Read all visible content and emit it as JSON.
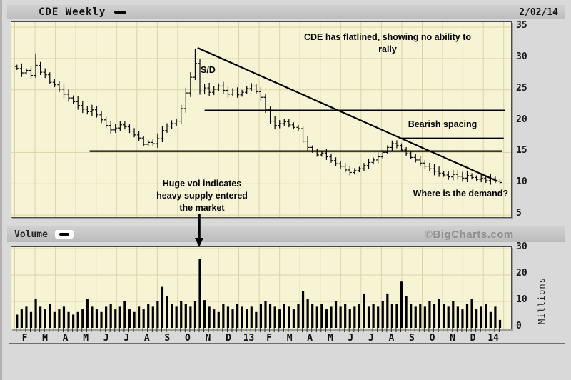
{
  "titlebar": {
    "title": "CDE Weekly",
    "collapse_label": "",
    "date": "2/02/14"
  },
  "volume_header": {
    "label": "Volume",
    "collapse_label": "",
    "copyright": "©BigCharts.com"
  },
  "annotations": {
    "flatline": "CDE has flatlined, showing no ability to rally",
    "sd": "S/D",
    "bearish": "Bearish spacing",
    "huge_vol_line1": "Huge vol indicates",
    "huge_vol_line2": "heavy supply entered",
    "huge_vol_line3": "the market",
    "demand": "Where is the demand?"
  },
  "axes": {
    "volume_unit": "Millions"
  },
  "chart_data": {
    "type": "bar",
    "subtype": "weekly-ohlc-with-volume",
    "symbol": "CDE",
    "interval": "Weekly",
    "as_of_date": "2/02/14",
    "x_labels": [
      "F",
      "M",
      "A",
      "M",
      "J",
      "J",
      "A",
      "S",
      "O",
      "N",
      "D",
      "13",
      "F",
      "M",
      "A",
      "M",
      "J",
      "J",
      "A",
      "S",
      "O",
      "N",
      "D",
      "14"
    ],
    "price_axis": {
      "ticks": [
        35,
        30,
        25,
        20,
        15,
        10,
        5
      ],
      "range": [
        4.2,
        35.6
      ]
    },
    "volume_axis": {
      "ticks": [
        30,
        20,
        10,
        0
      ],
      "range": [
        0,
        30.5
      ],
      "unit": "Millions"
    },
    "weekly_closes": [
      28.4,
      27.7,
      28.1,
      27.3,
      28.9,
      27.8,
      27.4,
      26.2,
      25.8,
      25.1,
      24.3,
      23.7,
      23.1,
      22.5,
      21.9,
      21.5,
      21.8,
      21.0,
      20.2,
      19.3,
      18.6,
      18.9,
      19.4,
      19.1,
      18.4,
      17.8,
      17.3,
      16.3,
      16.6,
      16.4,
      17.2,
      18.5,
      19.2,
      19.6,
      20.0,
      22.0,
      24.5,
      27.0,
      29.2,
      24.8,
      25.3,
      24.6,
      25.1,
      25.6,
      24.9,
      24.3,
      24.8,
      24.2,
      24.6,
      25.2,
      25.6,
      24.7,
      23.8,
      21.8,
      20.0,
      19.3,
      19.6,
      19.9,
      19.4,
      19.0,
      18.8,
      16.8,
      15.8,
      15.2,
      14.6,
      14.9,
      14.3,
      13.7,
      13.2,
      12.8,
      12.2,
      11.8,
      12.1,
      12.4,
      12.9,
      13.4,
      13.8,
      14.3,
      15.0,
      15.8,
      16.4,
      16.1,
      15.4,
      14.8,
      14.2,
      13.8,
      13.3,
      12.8,
      12.4,
      12.0,
      11.7,
      11.4,
      11.1,
      11.5,
      11.2,
      10.9,
      11.3,
      11.0,
      10.7,
      10.9,
      10.5,
      10.8,
      10.4,
      10.2
    ],
    "weekly_volumes_millions": [
      5,
      7,
      8,
      6,
      11,
      8,
      7,
      9,
      6,
      7,
      8,
      6,
      5,
      6,
      7,
      11,
      8,
      7,
      6,
      8,
      9,
      7,
      8,
      10,
      7,
      6,
      8,
      7,
      9,
      8,
      10,
      15.5,
      12,
      9,
      8,
      10,
      9,
      8,
      10,
      26,
      10.5,
      8,
      7,
      6,
      9,
      8,
      7,
      9,
      8,
      7,
      8,
      6,
      9,
      10,
      9,
      8,
      7,
      9,
      8,
      7,
      9,
      14,
      11,
      9,
      8,
      9,
      7,
      8,
      10,
      8,
      9,
      7,
      8,
      9,
      13,
      8,
      9,
      8,
      10,
      13,
      9,
      9,
      17.5,
      12,
      9,
      8,
      9,
      8,
      10,
      9,
      11,
      9,
      8,
      10,
      8,
      7,
      9,
      11,
      7,
      8,
      9,
      6,
      8,
      3
    ],
    "spike_highs": {
      "4": 30.8,
      "38": 31.6,
      "80": 16.9
    },
    "overlays": [
      {
        "kind": "trendline",
        "from_week": 39.0,
        "from_price": 31.7,
        "to_week": 103.0,
        "to_price": 10.4
      },
      {
        "kind": "hline",
        "price": 21.7,
        "from_week": 40.5,
        "to_week": 104.5
      },
      {
        "kind": "hline",
        "price": 17.25,
        "from_week": 82.0,
        "to_week": 104.3
      },
      {
        "kind": "hline",
        "price": 15.2,
        "from_week": 16.0,
        "to_week": 104.0
      }
    ],
    "volume_spike_arrow_week": 39
  }
}
